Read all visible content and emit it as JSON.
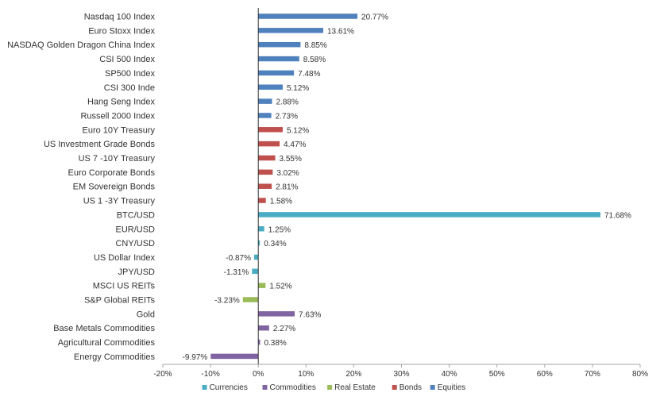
{
  "chart_data": {
    "type": "bar",
    "orientation": "horizontal",
    "title": "",
    "xlabel": "",
    "ylabel": "",
    "xlim": [
      -20,
      80
    ],
    "x_ticks": [
      "-20%",
      "-10%",
      "0%",
      "10%",
      "20%",
      "30%",
      "40%",
      "50%",
      "60%",
      "70%",
      "80%"
    ],
    "x_tick_values": [
      -20,
      -10,
      0,
      10,
      20,
      30,
      40,
      50,
      60,
      70,
      80
    ],
    "grid": false,
    "legend_position": "bottom",
    "legend": [
      {
        "name": "Currencies",
        "color": "#4BACC6"
      },
      {
        "name": "Commodities",
        "color": "#8064A2"
      },
      {
        "name": "Real Estate",
        "color": "#9BBB59"
      },
      {
        "name": "Bonds",
        "color": "#C0504D"
      },
      {
        "name": "Equities",
        "color": "#4F81BD"
      }
    ],
    "categories": [
      {
        "label": "Nasdaq 100 Index",
        "value": 20.77,
        "value_label": "20.77%",
        "group": "Equities"
      },
      {
        "label": "Euro Stoxx Index",
        "value": 13.61,
        "value_label": "13.61%",
        "group": "Equities"
      },
      {
        "label": "NASDAQ Golden Dragon China Index",
        "value": 8.85,
        "value_label": "8.85%",
        "group": "Equities"
      },
      {
        "label": "CSI 500 Index",
        "value": 8.58,
        "value_label": "8.58%",
        "group": "Equities"
      },
      {
        "label": "SP500 Index",
        "value": 7.48,
        "value_label": "7.48%",
        "group": "Equities"
      },
      {
        "label": "CSI 300 Inde",
        "value": 5.12,
        "value_label": "5.12%",
        "group": "Equities"
      },
      {
        "label": "Hang Seng Index",
        "value": 2.88,
        "value_label": "2.88%",
        "group": "Equities"
      },
      {
        "label": "Russell 2000 Index",
        "value": 2.73,
        "value_label": "2.73%",
        "group": "Equities"
      },
      {
        "label": "Euro 10Y Treasury",
        "value": 5.12,
        "value_label": "5.12%",
        "group": "Bonds"
      },
      {
        "label": "US Investment Grade Bonds",
        "value": 4.47,
        "value_label": "4.47%",
        "group": "Bonds"
      },
      {
        "label": "US 7 -10Y Treasury",
        "value": 3.55,
        "value_label": "3.55%",
        "group": "Bonds"
      },
      {
        "label": "Euro Corporate Bonds",
        "value": 3.02,
        "value_label": "3.02%",
        "group": "Bonds"
      },
      {
        "label": "EM Sovereign Bonds",
        "value": 2.81,
        "value_label": "2.81%",
        "group": "Bonds"
      },
      {
        "label": "US 1 -3Y Treasury",
        "value": 1.58,
        "value_label": "1.58%",
        "group": "Bonds"
      },
      {
        "label": "BTC/USD",
        "value": 71.68,
        "value_label": "71.68%",
        "group": "Currencies"
      },
      {
        "label": "EUR/USD",
        "value": 1.25,
        "value_label": "1.25%",
        "group": "Currencies"
      },
      {
        "label": "CNY/USD",
        "value": 0.34,
        "value_label": "0.34%",
        "group": "Currencies"
      },
      {
        "label": "US Dollar Index",
        "value": -0.87,
        "value_label": "-0.87%",
        "group": "Currencies"
      },
      {
        "label": "JPY/USD",
        "value": -1.31,
        "value_label": "-1.31%",
        "group": "Currencies"
      },
      {
        "label": "MSCI US REITs",
        "value": 1.52,
        "value_label": "1.52%",
        "group": "Real Estate"
      },
      {
        "label": "S&P Global REITs",
        "value": -3.23,
        "value_label": "-3.23%",
        "group": "Real Estate"
      },
      {
        "label": "Gold",
        "value": 7.63,
        "value_label": "7.63%",
        "group": "Commodities"
      },
      {
        "label": "Base Metals Commodities",
        "value": 2.27,
        "value_label": "2.27%",
        "group": "Commodities"
      },
      {
        "label": "Agricultural Commodities",
        "value": 0.38,
        "value_label": "0.38%",
        "group": "Commodities"
      },
      {
        "label": "Energy Commodities",
        "value": -9.97,
        "value_label": "-9.97%",
        "group": "Commodities"
      }
    ]
  }
}
